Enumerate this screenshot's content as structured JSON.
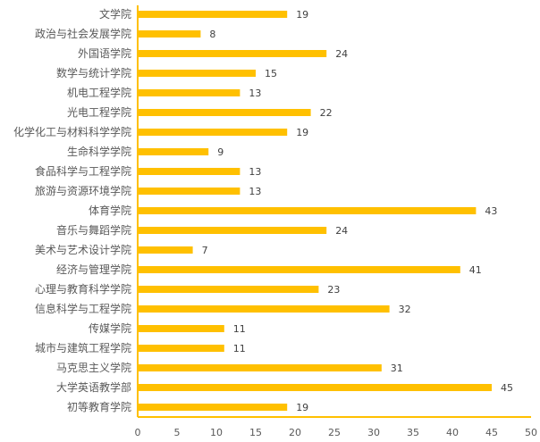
{
  "chart_data": {
    "type": "bar",
    "orientation": "horizontal",
    "categories": [
      "文学院",
      "政治与社会发展学院",
      "外国语学院",
      "数学与统计学院",
      "机电工程学院",
      "光电工程学院",
      "化学化工与材料科学学院",
      "生命科学学院",
      "食品科学与工程学院",
      "旅游与资源环境学院",
      "体育学院",
      "音乐与舞蹈学院",
      "美术与艺术设计学院",
      "经济与管理学院",
      "心理与教育科学学院",
      "信息科学与工程学院",
      "传媒学院",
      "城市与建筑工程学院",
      "马克思主义学院",
      "大学英语教学部",
      "初等教育学院"
    ],
    "values": [
      19,
      8,
      24,
      15,
      13,
      22,
      19,
      9,
      13,
      13,
      43,
      24,
      7,
      41,
      23,
      32,
      11,
      11,
      31,
      45,
      19
    ],
    "xlim": [
      0,
      50
    ],
    "xticks": [
      "0",
      "5",
      "10",
      "15",
      "20",
      "25",
      "30",
      "35",
      "40",
      "45",
      "50"
    ],
    "grid": false,
    "data_labels": true,
    "colors": {
      "bar": "#FFC000",
      "axis": "#FFC000"
    }
  }
}
